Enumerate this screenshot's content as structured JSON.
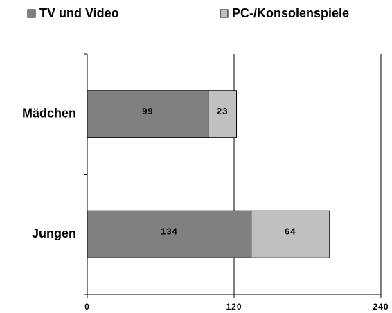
{
  "chart_data": {
    "type": "stacked_bar_horizontal",
    "categories": [
      "Mädchen",
      "Jungen"
    ],
    "series": [
      {
        "name": "TV und Video",
        "color": "#808080",
        "values": [
          99,
          134
        ]
      },
      {
        "name": "PC-/Konsolenspiele",
        "color": "#c0c0c0",
        "values": [
          23,
          64
        ]
      }
    ],
    "xlim": [
      0,
      240
    ],
    "xticks": [
      0,
      120,
      240
    ],
    "grid": true,
    "legend": "top"
  }
}
